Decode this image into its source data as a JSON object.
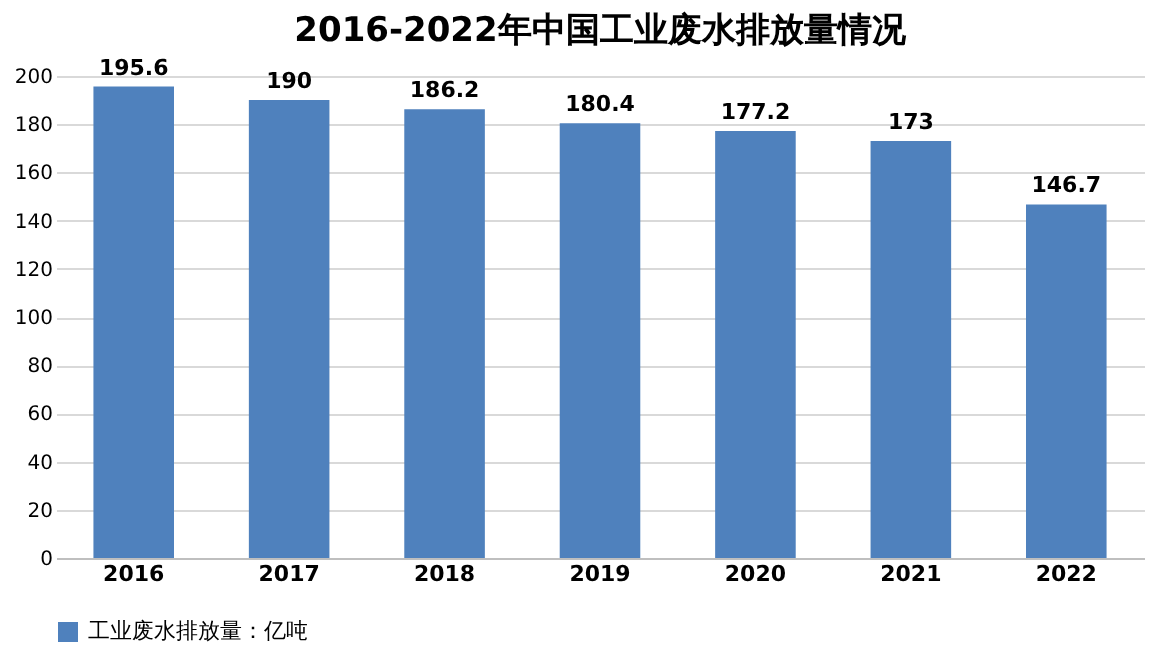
{
  "chart_data": {
    "type": "bar",
    "title": "2016-2022年中国工业废水排放量情况",
    "categories": [
      "2016",
      "2017",
      "2018",
      "2019",
      "2020",
      "2021",
      "2022"
    ],
    "series": [
      {
        "name": "工业废水排放量：亿吨",
        "color": "#4f81bd",
        "values": [
          195.6,
          190,
          186.2,
          180.4,
          177.2,
          173,
          146.7
        ]
      }
    ],
    "ylim": [
      0,
      200
    ],
    "yticks": [
      0,
      20,
      40,
      60,
      80,
      100,
      120,
      140,
      160,
      180,
      200
    ],
    "grid": "y",
    "data_labels": true,
    "legend": "bottom"
  }
}
